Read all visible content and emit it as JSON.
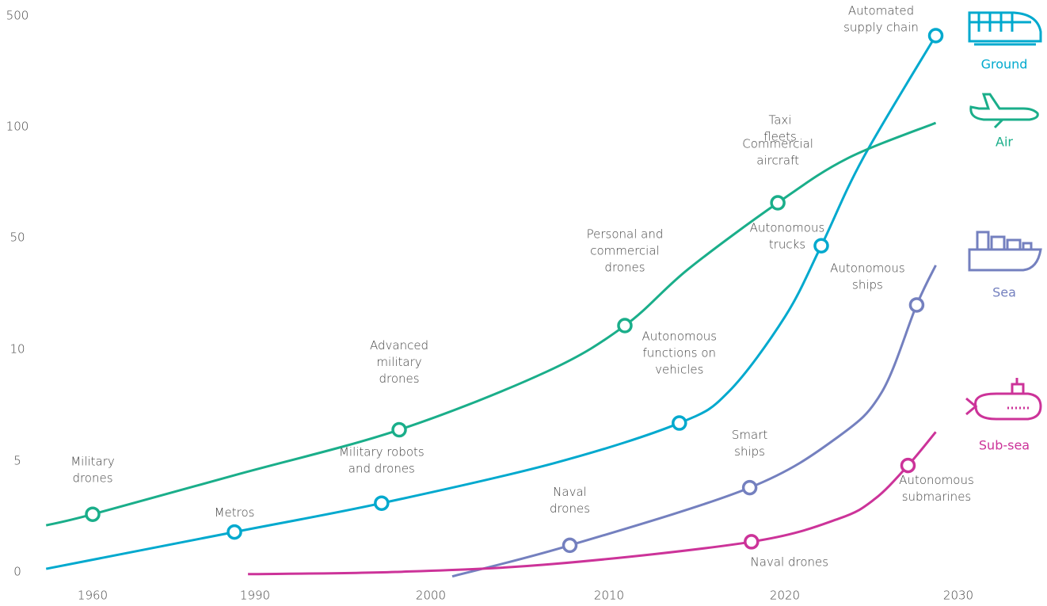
{
  "chart_data": {
    "type": "line",
    "xticks": [
      1960,
      1990,
      2000,
      2010,
      2020,
      2030
    ],
    "yticks": [
      0,
      5,
      10,
      50,
      100,
      500
    ],
    "xlim": [
      1951.4,
      2030
    ],
    "ylim": [
      -0.2,
      500
    ],
    "series": [
      {
        "name": "Ground",
        "color": "#00a9ce",
        "x": [
          1951.4,
          1986.2,
          1997.2,
          2006.9,
          2014.0,
          2016.8,
          2020.0,
          2022.1,
          2024.5,
          2028.7
        ],
        "values": [
          0.14,
          1.8,
          3.1,
          4.9,
          6.7,
          8.1,
          21.6,
          47.1,
          85.7,
          428.6
        ],
        "milestones": [
          {
            "x": 1986.2,
            "y": 1.8,
            "label": [
              "Metros"
            ]
          },
          {
            "x": 1997.2,
            "y": 3.1,
            "label": [
              "Military robots",
              "and drones"
            ]
          },
          {
            "x": 2014.0,
            "y": 6.7,
            "label": [
              "Autonomous",
              "functions on",
              "vehicles"
            ]
          },
          {
            "x": 2022.1,
            "y": 47.1,
            "label": [
              "Autonomous",
              "trucks"
            ]
          },
          {
            "x": 2028.7,
            "y": 428.6,
            "label": [
              "Automated",
              "supply chain"
            ]
          }
        ]
      },
      {
        "name": "Air",
        "color": "#1aae8a",
        "x": [
          1951.4,
          1960,
          1986.8,
          1998.2,
          2006.5,
          2010.9,
          2014.5,
          2019.6,
          2023.6,
          2028.7
        ],
        "values": [
          2.1,
          2.6,
          4.4,
          6.4,
          9.0,
          18.5,
          38.7,
          65.7,
          85.7,
          114
        ],
        "milestones": [
          {
            "x": 1960,
            "y": 2.6,
            "label": [
              "Military",
              "drones"
            ]
          },
          {
            "x": 1998.2,
            "y": 6.4,
            "label": [
              "Advanced",
              "military",
              "drones"
            ]
          },
          {
            "x": 2010.9,
            "y": 18.5,
            "label": [
              "Personal and",
              "commercial",
              "drones"
            ]
          },
          {
            "x": 2019.6,
            "y": 65.7,
            "label": [
              "Commercial",
              "aircraft"
            ]
          }
        ]
      },
      {
        "name": "Sea",
        "color": "#7480bf",
        "x": [
          2001.2,
          2007.8,
          2018.0,
          2023.1,
          2025.6,
          2027.6,
          2028.7
        ],
        "values": [
          -0.2,
          1.2,
          3.8,
          6.1,
          8.1,
          25.9,
          40.1
        ],
        "milestones": [
          {
            "x": 2007.8,
            "y": 1.2,
            "label": [
              "Naval",
              "drones"
            ]
          },
          {
            "x": 2018.0,
            "y": 3.8,
            "label": [
              "Smart",
              "ships"
            ]
          },
          {
            "x": 2027.6,
            "y": 25.9,
            "label": [
              "Autonomous",
              "ships"
            ]
          }
        ]
      },
      {
        "name": "Sub-sea",
        "color": "#cc3399",
        "x": [
          1988.7,
          1998.0,
          2006.9,
          2018.1,
          2023.1,
          2025.2,
          2027.1,
          2028.7
        ],
        "values": [
          -0.1,
          0,
          0.36,
          1.36,
          2.4,
          3.3,
          4.8,
          6.3
        ],
        "milestones": [
          {
            "x": 2018.1,
            "y": 1.36,
            "label": [
              "Naval drones"
            ]
          },
          {
            "x": 2027.1,
            "y": 4.8,
            "label": [
              "Autonomous",
              "submarines"
            ]
          }
        ]
      }
    ],
    "annotations": [
      [
        "Taxi",
        "fleets"
      ]
    ]
  }
}
